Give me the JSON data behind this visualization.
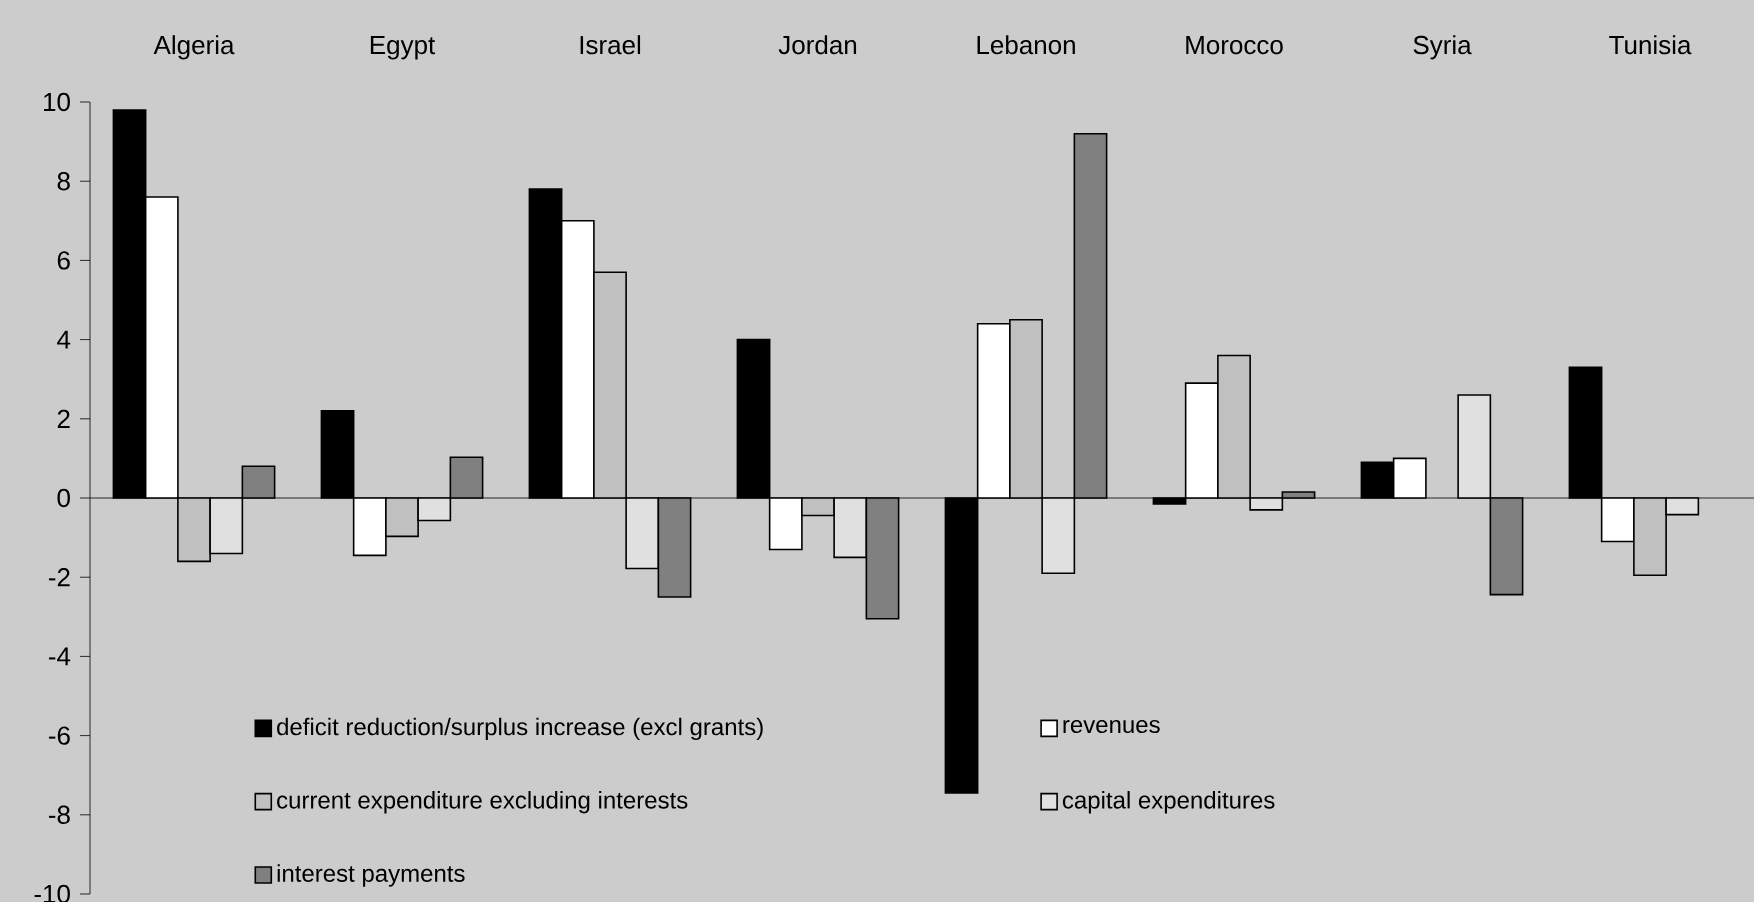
{
  "chart_data": {
    "type": "bar",
    "categories": [
      "Algeria",
      "Egypt",
      "Israel",
      "Jordan",
      "Lebanon",
      "Morocco",
      "Syria",
      "Tunisia"
    ],
    "series": [
      {
        "name": "deficit reduction/surplus increase (excl grants)",
        "color": "#000000",
        "values": [
          9.8,
          2.2,
          7.8,
          4.0,
          -7.45,
          -0.15,
          0.9,
          3.3
        ]
      },
      {
        "name": "revenues",
        "color": "#ffffff",
        "values": [
          7.6,
          -1.45,
          7.0,
          -1.3,
          4.4,
          2.9,
          1.0,
          -1.1
        ]
      },
      {
        "name": "current expenditure excluding interests",
        "color": "#c0c0c0",
        "values": [
          -1.6,
          -0.97,
          5.7,
          -0.44,
          4.5,
          3.6,
          null,
          -1.95
        ]
      },
      {
        "name": "capital expenditures",
        "color": "#e0e0e0",
        "values": [
          -1.4,
          -0.57,
          -1.78,
          -1.5,
          -1.9,
          -0.3,
          2.6,
          -0.42
        ]
      },
      {
        "name": "interest payments",
        "color": "#808080",
        "values": [
          0.8,
          1.03,
          -2.5,
          -3.05,
          9.2,
          0.15,
          -2.44,
          null
        ]
      }
    ],
    "ylim": [
      -10,
      10
    ],
    "yticks": [
      -10,
      -8,
      -6,
      -4,
      -2,
      0,
      2,
      4,
      6,
      8,
      10
    ],
    "legend": "bottom left"
  }
}
